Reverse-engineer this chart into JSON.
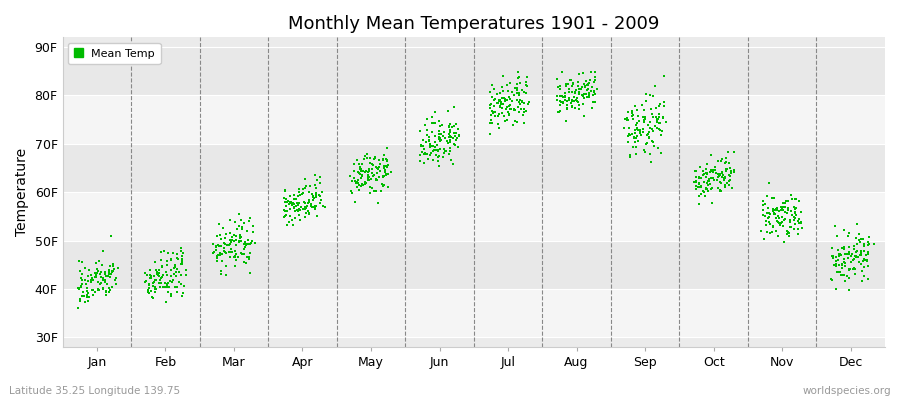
{
  "title": "Monthly Mean Temperatures 1901 - 2009",
  "ylabel": "Temperature",
  "xlabel_labels": [
    "Jan",
    "Feb",
    "Mar",
    "Apr",
    "May",
    "Jun",
    "Jul",
    "Aug",
    "Sep",
    "Oct",
    "Nov",
    "Dec"
  ],
  "ytick_labels": [
    "30F",
    "40F",
    "50F",
    "60F",
    "70F",
    "80F",
    "90F"
  ],
  "ytick_values": [
    30,
    40,
    50,
    60,
    70,
    80,
    90
  ],
  "ylim": [
    28,
    92
  ],
  "legend_label": "Mean Temp",
  "dot_color": "#00bb00",
  "bg_color": "#ebebeb",
  "stripe_color": "#e0e0e0",
  "subtitle_left": "Latitude 35.25 Longitude 139.75",
  "subtitle_right": "worldspecies.org",
  "monthly_means": [
    41.5,
    42.5,
    49.0,
    57.5,
    63.5,
    70.5,
    78.0,
    80.0,
    73.5,
    63.0,
    55.0,
    46.5
  ],
  "monthly_spreads": [
    2.2,
    2.5,
    2.5,
    2.2,
    2.2,
    2.5,
    2.5,
    2.2,
    3.0,
    2.0,
    2.5,
    2.5
  ],
  "n_years": 109,
  "seed": 42
}
